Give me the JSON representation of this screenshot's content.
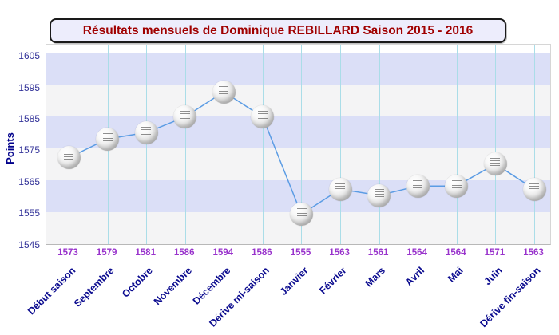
{
  "title": "Résultats mensuels de Dominique REBILLARD Saison 2015 - 2016",
  "chart_data": {
    "type": "line",
    "title": "Résultats mensuels de Dominique REBILLARD Saison 2015 - 2016",
    "categories": [
      "Début saison",
      "Septembre",
      "Octobre",
      "Novembre",
      "Décembre",
      "Dérive mi-saison",
      "Janvier",
      "Février",
      "Mars",
      "Avril",
      "Mai",
      "Juin",
      "Dérive fin-saison"
    ],
    "values": [
      1573,
      1579,
      1581,
      1586,
      1594,
      1586,
      1555,
      1563,
      1561,
      1564,
      1564,
      1571,
      1563
    ],
    "point_labels": [
      "1573",
      "1579",
      "1581",
      "1586",
      "1594",
      "1586",
      "1555",
      "1563",
      "1561",
      "1564",
      "1564",
      "1571",
      "1563"
    ],
    "xlabel": "",
    "ylabel": "Points",
    "ylim": [
      1545,
      1609
    ],
    "yticks": [
      1605,
      1595,
      1585,
      1575,
      1565,
      1555,
      1545
    ],
    "grid": true,
    "legend": false,
    "marker_style": "ping-pong-ball",
    "alternating_bands": true
  },
  "colors": {
    "title_text": "#a00000",
    "title_bg": "#ededfc",
    "title_border": "#1a1a1a",
    "band_lavender": "#dbdff7",
    "band_gray": "#f4f4f5",
    "gridline": "#aadde8",
    "line": "#5b9ce4",
    "tick_label": "#333399",
    "value_label": "#9933cc",
    "category_label": "#0b0b8f",
    "axis_title": "#00008b"
  }
}
